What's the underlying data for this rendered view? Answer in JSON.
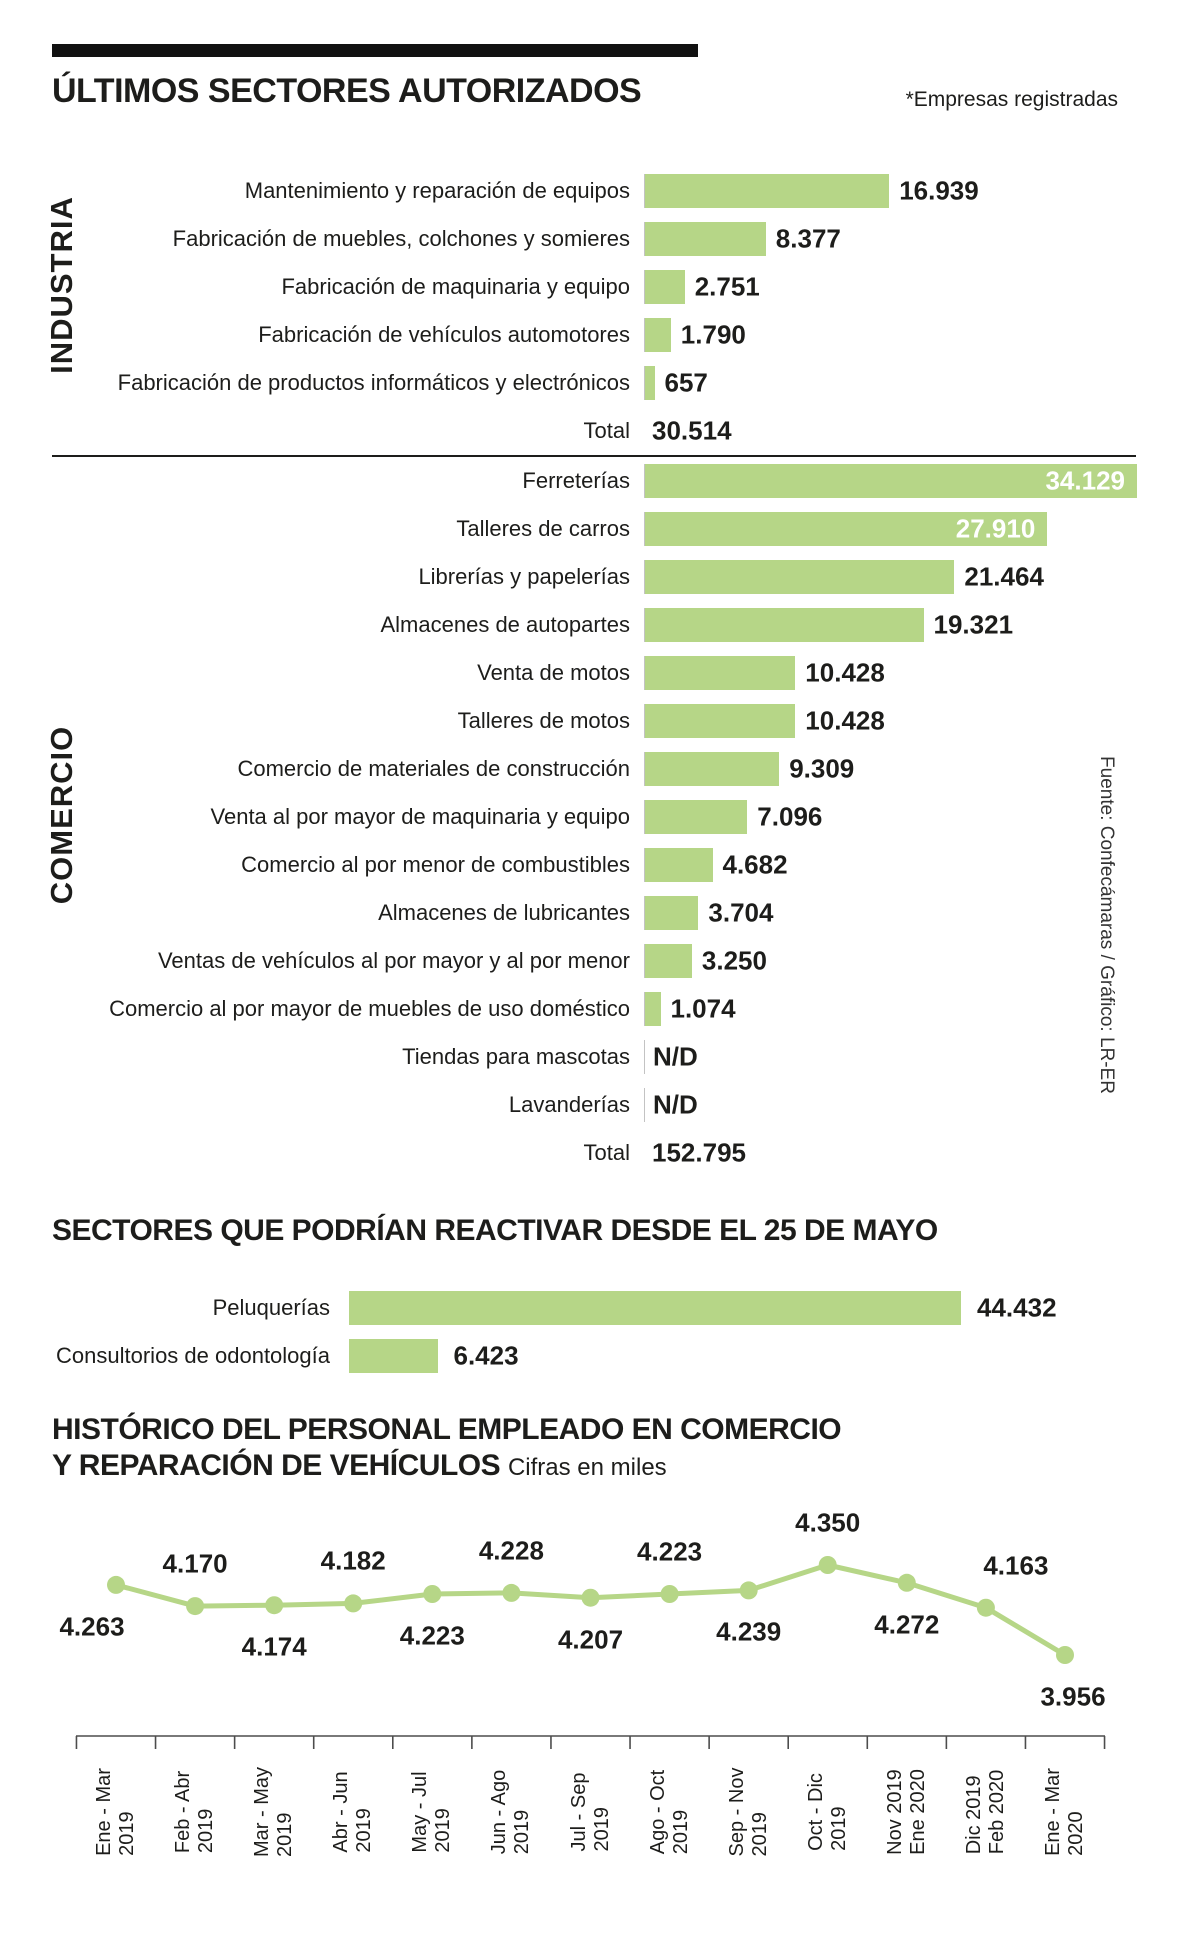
{
  "header": {
    "title": "ÚLTIMOS SECTORES AUTORIZADOS",
    "note": "*Empresas registradas"
  },
  "source": "Fuente: Confecámaras / Gráfico: LR-ER",
  "colors": {
    "accent_green": "#b6d687",
    "ink": "#1d1d1b",
    "axis_gray": "#4d4d4d",
    "value_inside": "#ffffff"
  },
  "chart_data": [
    {
      "id": "industria",
      "type": "bar",
      "orientation": "horizontal",
      "group_label": "INDUSTRIA",
      "xlim": [
        0,
        34129
      ],
      "categories": [
        "Mantenimiento y reparación de equipos",
        "Fabricación de muebles, colchones y somieres",
        "Fabricación de maquinaria y equipo",
        "Fabricación de vehículos automotores",
        "Fabricación de productos informáticos y electrónicos"
      ],
      "values": [
        16939,
        8377,
        2751,
        1790,
        657
      ],
      "value_labels": [
        "16.939",
        "8.377",
        "2.751",
        "1.790",
        "657"
      ],
      "labels_inside": [
        false,
        false,
        false,
        false,
        false
      ],
      "total": {
        "label": "Total",
        "value": 30514,
        "value_label": "30.514"
      }
    },
    {
      "id": "comercio",
      "type": "bar",
      "orientation": "horizontal",
      "group_label": "COMERCIO",
      "xlim": [
        0,
        34129
      ],
      "categories": [
        "Ferreterías",
        "Talleres de carros",
        "Librerías y papelerías",
        "Almacenes de autopartes",
        "Venta de motos",
        "Talleres de motos",
        "Comercio de materiales de construcción",
        "Venta al por mayor de maquinaria y equipo",
        "Comercio al por menor de combustibles",
        "Almacenes de lubricantes",
        "Ventas de vehículos al por mayor y al por menor",
        "Comercio al por mayor de muebles de uso doméstico",
        "Tiendas para mascotas",
        "Lavanderías"
      ],
      "values": [
        34129,
        27910,
        21464,
        19321,
        10428,
        10428,
        9309,
        7096,
        4682,
        3704,
        3250,
        1074,
        null,
        null
      ],
      "value_labels": [
        "34.129",
        "27.910",
        "21.464",
        "19.321",
        "10.428",
        "10.428",
        "9.309",
        "7.096",
        "4.682",
        "3.704",
        "3.250",
        "1.074",
        "N/D",
        "N/D"
      ],
      "labels_inside": [
        true,
        true,
        false,
        false,
        false,
        false,
        false,
        false,
        false,
        false,
        false,
        false,
        false,
        false
      ],
      "total": {
        "label": "Total",
        "value": 152795,
        "value_label": "152.795"
      }
    },
    {
      "id": "reactivar",
      "type": "bar",
      "orientation": "horizontal",
      "title": "SECTORES QUE PODRÍAN REACTIVAR DESDE EL 25 DE MAYO",
      "xlim": [
        0,
        44432
      ],
      "categories": [
        "Peluquerías",
        "Consultorios de odontología"
      ],
      "values": [
        44432,
        6423
      ],
      "value_labels": [
        "44.432",
        "6.423"
      ],
      "labels_inside": [
        false,
        false
      ]
    },
    {
      "id": "historico",
      "type": "line",
      "title": "HISTÓRICO DEL PERSONAL EMPLEADO EN COMERCIO Y REPARACIÓN DE VEHÍCULOS",
      "title_lines": [
        "HISTÓRICO DEL PERSONAL EMPLEADO EN COMERCIO",
        "Y REPARACIÓN DE VEHÍCULOS"
      ],
      "subtitle": "Cifras en miles",
      "categories": [
        [
          "Ene - Mar",
          "2019"
        ],
        [
          "Feb - Abr",
          "2019"
        ],
        [
          "Mar - May",
          "2019"
        ],
        [
          "Abr - Jun",
          "2019"
        ],
        [
          "May - Jul",
          "2019"
        ],
        [
          "Jun - Ago",
          "2019"
        ],
        [
          "Jul - Sep",
          "2019"
        ],
        [
          "Ago - Oct",
          "2019"
        ],
        [
          "Sep - Nov",
          "2019"
        ],
        [
          "Oct - Dic",
          "2019"
        ],
        [
          "Nov 2019",
          "Ene 2020"
        ],
        [
          "Dic 2019",
          "Feb 2020"
        ],
        [
          "Ene - Mar",
          "2020"
        ]
      ],
      "values": [
        4263,
        4170,
        4174,
        4182,
        4223,
        4228,
        4207,
        4223,
        4239,
        4350,
        4272,
        4163,
        3956
      ],
      "value_labels": [
        "4.263",
        "4.170",
        "4.174",
        "4.182",
        "4.223",
        "4.228",
        "4.207",
        "4.223",
        "4.239",
        "4.350",
        "4.272",
        "4.163",
        "3.956"
      ],
      "label_side": [
        "below",
        "above",
        "below",
        "above",
        "below",
        "above",
        "below",
        "above",
        "below",
        "above",
        "below",
        "above",
        "below"
      ],
      "ylim": [
        3900,
        4400
      ],
      "grid": false,
      "legend": false
    }
  ]
}
